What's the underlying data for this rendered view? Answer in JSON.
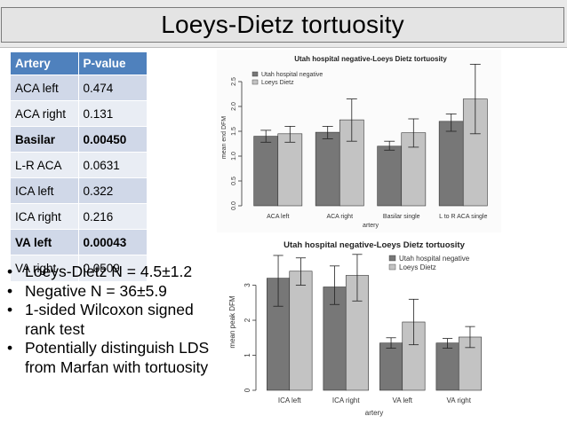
{
  "slide": {
    "title": "Loeys-Dietz tortuosity",
    "page_number": "‹#›"
  },
  "table": {
    "headers": [
      "Artery",
      "P-value"
    ],
    "rows": [
      {
        "artery": "ACA left",
        "p": "0.474",
        "bold": false
      },
      {
        "artery": "ACA right",
        "p": "0.131",
        "bold": false
      },
      {
        "artery": "Basilar",
        "p": "0.00450",
        "bold": true
      },
      {
        "artery": "L-R ACA",
        "p": "0.0631",
        "bold": false
      },
      {
        "artery": "ICA left",
        "p": "0.322",
        "bold": false
      },
      {
        "artery": "ICA right",
        "p": "0.216",
        "bold": false
      },
      {
        "artery": "VA left",
        "p": "0.00043",
        "bold": true
      },
      {
        "artery": "VA right",
        "p": "0.0509",
        "bold": false
      }
    ]
  },
  "bullets": [
    "Loeys-Dietz N = 4.5±1.2",
    "Negative N = 36±5.9",
    "1-sided Wilcoxon signed rank test",
    "Potentially distinguish LDS from Marfan with tortuosity"
  ],
  "colors": {
    "header_blue": "#4f81bd",
    "row_odd": "#d0d8e8",
    "row_even": "#e9edf4",
    "series_negative": "#777777",
    "series_ld": "#c3c3c3"
  },
  "chart_data": [
    {
      "type": "bar",
      "title": "Utah hospital negative-Loeys Dietz tortuosity",
      "xlabel": "artery",
      "ylabel": "mean end DFM",
      "ylim": [
        0,
        2.75
      ],
      "yticks": [
        "0.0",
        "0.5",
        "1.0",
        "1.5",
        "2.0",
        "2.5"
      ],
      "ytick_values": [
        0,
        0.5,
        1.0,
        1.5,
        2.0,
        2.5
      ],
      "legend_position": "top-left",
      "categories": [
        "ACA left",
        "ACA right",
        "Basilar single",
        "L to R ACA single"
      ],
      "series": [
        {
          "name": "Utah hospital negative",
          "color": "#777777",
          "values": [
            1.4,
            1.48,
            1.2,
            1.7
          ],
          "err_low": [
            1.28,
            1.35,
            1.12,
            1.5
          ],
          "err_high": [
            1.52,
            1.6,
            1.3,
            1.85
          ]
        },
        {
          "name": "Loeys Dietz",
          "color": "#c3c3c3",
          "values": [
            1.45,
            1.73,
            1.47,
            2.15
          ],
          "err_low": [
            1.28,
            1.3,
            1.18,
            1.45
          ],
          "err_high": [
            1.6,
            2.15,
            1.75,
            2.85
          ]
        }
      ]
    },
    {
      "type": "bar",
      "title": "Utah hospital negative-Loeys Dietz tortuosity",
      "xlabel": "artery",
      "ylabel": "mean peak DFM",
      "ylim": [
        0,
        3.9
      ],
      "yticks": [
        "0",
        "1",
        "2",
        "3"
      ],
      "ytick_values": [
        0,
        1,
        2,
        3
      ],
      "legend_position": "top-right",
      "categories": [
        "ICA left",
        "ICA right",
        "VA left",
        "VA right"
      ],
      "series": [
        {
          "name": "Utah hospital negative",
          "color": "#777777",
          "values": [
            3.2,
            2.95,
            1.35,
            1.35
          ],
          "err_low": [
            2.4,
            2.45,
            1.2,
            1.2
          ],
          "err_high": [
            3.85,
            3.55,
            1.5,
            1.48
          ]
        },
        {
          "name": "Loeys Dietz",
          "color": "#c3c3c3",
          "values": [
            3.4,
            3.28,
            1.95,
            1.52
          ],
          "err_low": [
            3.0,
            2.55,
            1.3,
            1.22
          ],
          "err_high": [
            3.78,
            3.88,
            2.6,
            1.82
          ]
        }
      ]
    }
  ]
}
